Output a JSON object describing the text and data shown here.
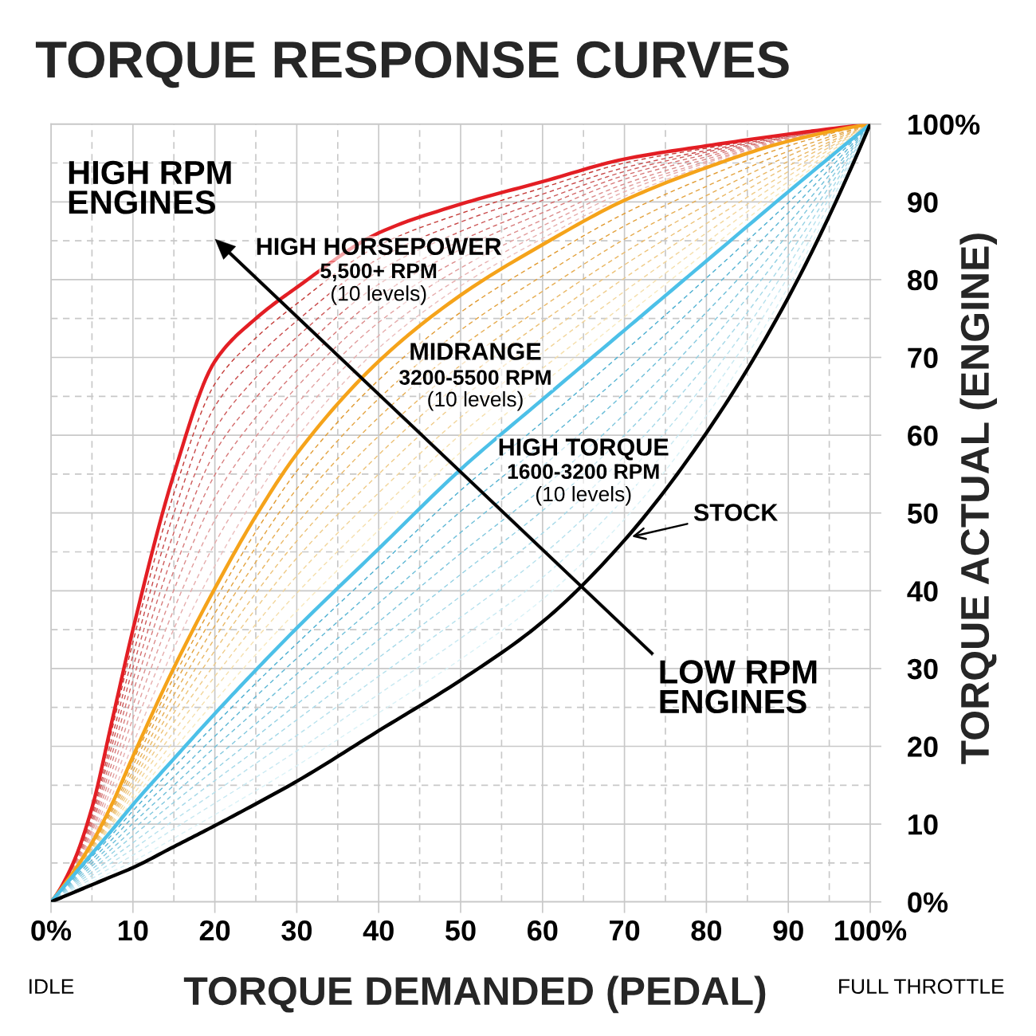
{
  "chart_data": {
    "type": "line",
    "title": "TORQUE RESPONSE CURVES",
    "xlabel": "TORQUE DEMANDED (PEDAL)",
    "ylabel": "TORQUE ACTUAL (ENGINE)",
    "annotations": [
      "HIGH RPM\nENGINES",
      "LOW RPM\nENGINES",
      "5,500+ RPM",
      "(10 levels)",
      "3200-5500 RPM",
      "(10 levels)",
      "1600-3200 RPM",
      "(10 levels)",
      "IDLE",
      "FULL THROTTLE"
    ],
    "x": [
      0,
      2.5,
      5,
      7.5,
      10,
      15,
      20,
      25,
      30,
      40,
      50,
      60,
      70,
      80,
      90,
      100
    ],
    "series": [
      {
        "name": "HIGH HORSEPOWER",
        "color": "#e31e24",
        "values": [
          0,
          4.5,
          12.1,
          23.5,
          35,
          55,
          69.5,
          75,
          79,
          86,
          89.7,
          92.6,
          95.5,
          97.2,
          98.7,
          100
        ]
      },
      {
        "name": "MIDRANGE",
        "color": "#f5a31a",
        "values": [
          0,
          3.5,
          7.6,
          12.7,
          18.7,
          30.1,
          40.3,
          49.6,
          57.6,
          69.5,
          78.0,
          84.5,
          90.2,
          94.4,
          97.8,
          100
        ]
      },
      {
        "name": "HIGH TORQUE",
        "color": "#4cc0e8",
        "values": [
          0,
          3.1,
          6.2,
          9.3,
          12.5,
          18.4,
          24.2,
          29.8,
          35.2,
          45.4,
          55.6,
          64.6,
          73.5,
          82.4,
          91.3,
          100
        ]
      },
      {
        "name": "STOCK",
        "color": "#000000",
        "values": [
          0,
          1.1,
          2.2,
          3.3,
          4.4,
          7.1,
          9.8,
          12.6,
          15.5,
          22.0,
          28.5,
          36.0,
          46.5,
          60.3,
          77.7,
          100
        ]
      },
      {
        "color": "#c33a36",
        "line_style": "dashed",
        "values": [
          0,
          4.4,
          11.7,
          22.4,
          33.4,
          52.5,
          66.6,
          72.5,
          76.9,
          84.4,
          88.5,
          91.8,
          95.0,
          96.9,
          98.6,
          100
        ]
      },
      {
        "color": "#c8494a",
        "line_style": "dashed",
        "values": [
          0,
          4.3,
          11.2,
          21.3,
          31.7,
          50.0,
          63.7,
          69.9,
          74.7,
          82.7,
          87.4,
          91.0,
          94.4,
          96.6,
          98.5,
          100
        ]
      },
      {
        "color": "#cd5a5a",
        "line_style": "dashed",
        "values": [
          0,
          4.2,
          10.8,
          20.3,
          30.1,
          47.5,
          60.7,
          67.4,
          72.6,
          81.1,
          86.2,
          90.2,
          93.9,
          96.4,
          98.4,
          100
        ]
      },
      {
        "color": "#d26a6a",
        "line_style": "dashed",
        "values": [
          0,
          4.1,
          10.3,
          19.2,
          28.5,
          45.0,
          57.8,
          64.8,
          70.4,
          79.4,
          85.0,
          89.4,
          93.4,
          96.1,
          98.3,
          100
        ]
      },
      {
        "color": "#d77b7b",
        "line_style": "dashed",
        "values": [
          0,
          4.0,
          9.9,
          18.1,
          26.9,
          42.6,
          54.9,
          62.3,
          68.3,
          77.8,
          83.9,
          88.6,
          92.9,
          95.8,
          98.3,
          100
        ]
      },
      {
        "color": "#dc8c8c",
        "line_style": "dashed",
        "values": [
          0,
          3.9,
          9.4,
          17.0,
          25.2,
          40.1,
          52.0,
          59.8,
          66.2,
          76.1,
          82.7,
          87.7,
          92.3,
          95.5,
          98.2,
          100
        ]
      },
      {
        "color": "#e19d9d",
        "line_style": "dashed",
        "values": [
          0,
          3.8,
          9.0,
          15.9,
          23.6,
          37.6,
          49.1,
          57.2,
          64.0,
          74.5,
          81.5,
          86.9,
          91.8,
          95.2,
          98.1,
          100
        ]
      },
      {
        "color": "#e6adad",
        "line_style": "dashed",
        "values": [
          0,
          3.7,
          8.5,
          14.9,
          22.0,
          35.1,
          46.1,
          54.7,
          61.9,
          72.8,
          80.3,
          86.1,
          91.3,
          95.0,
          98.0,
          100
        ]
      },
      {
        "color": "#ebbebe",
        "line_style": "dashed",
        "values": [
          0,
          3.6,
          8.1,
          13.8,
          20.3,
          32.6,
          43.2,
          52.1,
          59.7,
          71.2,
          79.2,
          85.3,
          90.7,
          94.7,
          97.9,
          100
        ]
      },
      {
        "color": "#e0992f",
        "line_style": "dashed",
        "values": [
          0,
          3.5,
          7.5,
          12.4,
          18.1,
          28.9,
          38.7,
          47.6,
          55.4,
          67.1,
          75.8,
          82.5,
          88.5,
          93.2,
          97.2,
          100
        ]
      },
      {
        "color": "#e3a340",
        "line_style": "dashed",
        "values": [
          0,
          3.4,
          7.3,
          12.0,
          17.5,
          27.8,
          37.1,
          45.6,
          53.1,
          64.7,
          73.5,
          80.5,
          86.9,
          92.0,
          96.5,
          100
        ]
      },
      {
        "color": "#e6ad52",
        "line_style": "dashed",
        "values": [
          0,
          3.4,
          7.2,
          11.7,
          16.8,
          26.6,
          35.5,
          43.7,
          50.9,
          62.3,
          71.3,
          78.5,
          85.2,
          90.8,
          95.9,
          100
        ]
      },
      {
        "color": "#e9b764",
        "line_style": "dashed",
        "values": [
          0,
          3.3,
          7.0,
          11.3,
          16.2,
          25.4,
          33.9,
          41.7,
          48.6,
          59.9,
          69.0,
          76.5,
          83.5,
          89.6,
          95.2,
          100
        ]
      },
      {
        "color": "#ecc176",
        "line_style": "dashed",
        "values": [
          0,
          3.3,
          6.9,
          11.0,
          15.6,
          24.3,
          32.3,
          39.7,
          46.4,
          57.5,
          66.8,
          74.6,
          81.9,
          88.4,
          94.6,
          100
        ]
      },
      {
        "color": "#efcb88",
        "line_style": "dashed",
        "values": [
          0,
          3.3,
          6.8,
          10.7,
          15.0,
          23.1,
          30.6,
          37.7,
          44.2,
          55.0,
          64.6,
          72.6,
          80.2,
          87.2,
          93.9,
          100
        ]
      },
      {
        "color": "#f2d59a",
        "line_style": "dashed",
        "values": [
          0,
          3.2,
          6.6,
          10.3,
          14.4,
          21.9,
          29.0,
          35.7,
          41.9,
          52.6,
          62.3,
          70.6,
          78.5,
          86.0,
          93.3,
          100
        ]
      },
      {
        "color": "#f5dfac",
        "line_style": "dashed",
        "values": [
          0,
          3.2,
          6.5,
          10.0,
          13.7,
          20.7,
          27.4,
          33.8,
          39.7,
          50.2,
          60.1,
          68.6,
          76.8,
          84.8,
          92.6,
          100
        ]
      },
      {
        "color": "#f8e9be",
        "line_style": "dashed",
        "values": [
          0,
          3.1,
          6.3,
          9.6,
          13.1,
          19.6,
          25.8,
          31.8,
          37.4,
          47.8,
          57.8,
          66.6,
          75.2,
          83.6,
          92.0,
          100
        ]
      },
      {
        "color": "#4aaed0",
        "line_style": "dashed",
        "values": [
          0,
          2.9,
          5.8,
          8.7,
          11.7,
          17.3,
          22.8,
          28.1,
          33.2,
          43.1,
          52.9,
          61.7,
          70.8,
          80.2,
          89.9,
          100
        ]
      },
      {
        "color": "#5cb6d4",
        "line_style": "dashed",
        "values": [
          0,
          2.7,
          5.4,
          8.1,
          10.9,
          16.1,
          21.3,
          26.4,
          31.3,
          40.7,
          50.2,
          58.9,
          68.1,
          78.0,
          88.6,
          100
        ]
      },
      {
        "color": "#6ebfd9",
        "line_style": "dashed",
        "values": [
          0,
          2.5,
          5.0,
          7.5,
          10.1,
          15.0,
          19.9,
          24.6,
          29.3,
          38.4,
          47.5,
          56.0,
          65.4,
          75.8,
          87.2,
          100
        ]
      },
      {
        "color": "#80c7de",
        "line_style": "dashed",
        "values": [
          0,
          2.3,
          4.6,
          6.9,
          9.3,
          13.9,
          18.4,
          22.9,
          27.3,
          36.0,
          44.8,
          53.2,
          62.7,
          73.6,
          85.9,
          100
        ]
      },
      {
        "color": "#92d0e3",
        "line_style": "dashed",
        "values": [
          0,
          2.1,
          4.2,
          6.3,
          8.5,
          12.8,
          17.0,
          21.2,
          25.4,
          33.7,
          42.1,
          50.3,
          60.0,
          71.4,
          84.5,
          100
        ]
      },
      {
        "color": "#a4d8e8",
        "line_style": "dashed",
        "values": [
          0,
          1.9,
          3.8,
          5.7,
          7.6,
          11.6,
          15.6,
          19.5,
          23.4,
          31.4,
          39.3,
          47.4,
          57.3,
          69.1,
          83.1,
          100
        ]
      },
      {
        "color": "#b6e1ed",
        "line_style": "dashed",
        "values": [
          0,
          1.7,
          3.4,
          5.1,
          6.8,
          10.5,
          14.1,
          17.8,
          21.4,
          29.0,
          36.6,
          44.6,
          54.6,
          66.9,
          81.8,
          100
        ]
      },
      {
        "color": "#c8e9f2",
        "line_style": "dashed",
        "values": [
          0,
          1.5,
          3.0,
          4.5,
          6.0,
          9.4,
          12.7,
          16.0,
          19.4,
          26.7,
          33.9,
          41.7,
          51.9,
          64.7,
          80.4,
          100
        ]
      },
      {
        "color": "#daf2f7",
        "line_style": "dashed",
        "values": [
          0,
          1.3,
          2.6,
          3.9,
          5.2,
          8.2,
          11.2,
          14.3,
          17.5,
          24.3,
          31.2,
          38.9,
          49.2,
          62.5,
          79.1,
          100
        ]
      }
    ],
    "xlim": [
      0,
      100
    ],
    "ylim": [
      0,
      100
    ],
    "xticks": [
      {
        "value": 0,
        "label": "0%"
      },
      {
        "value": 5,
        "label": null
      },
      10,
      {
        "value": 15,
        "label": null
      },
      20,
      {
        "value": 25,
        "label": null
      },
      30,
      {
        "value": 35,
        "label": null
      },
      40,
      {
        "value": 45,
        "label": null
      },
      50,
      {
        "value": 55,
        "label": null
      },
      60,
      {
        "value": 65,
        "label": null
      },
      70,
      {
        "value": 75,
        "label": null
      },
      80,
      {
        "value": 85,
        "label": null
      },
      90,
      {
        "value": 95,
        "label": null
      },
      {
        "value": 100,
        "label": "100%"
      }
    ],
    "yticks": [
      {
        "value": 0,
        "label": "0%"
      },
      {
        "value": 5,
        "label": null
      },
      10,
      {
        "value": 15,
        "label": null
      },
      20,
      {
        "value": 25,
        "label": null
      },
      30,
      {
        "value": 35,
        "label": null
      },
      40,
      {
        "value": 45,
        "label": null
      },
      50,
      {
        "value": 55,
        "label": null
      },
      60,
      {
        "value": 65,
        "label": null
      },
      70,
      {
        "value": 75,
        "label": null
      },
      80,
      {
        "value": 85,
        "label": null
      },
      90,
      {
        "value": 95,
        "label": null
      },
      {
        "value": 100,
        "label": "100%"
      }
    ],
    "grid": true,
    "legend": false
  }
}
